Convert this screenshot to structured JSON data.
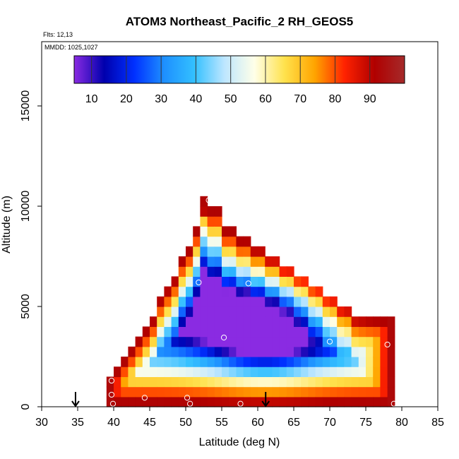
{
  "chart_data": {
    "type": "heatmap",
    "title": "ATOM3 Northeast_Pacific_2 RH_GEOS5",
    "flights_note": "Flts: 12,13",
    "dates_note": "MMDD: 1025,1027",
    "xlabel": "Latitude (deg N)",
    "ylabel": "Altitude (m)",
    "xlim": [
      30,
      85
    ],
    "ylim": [
      0,
      17500
    ],
    "x_ticks": [
      "30",
      "35",
      "40",
      "45",
      "50",
      "55",
      "60",
      "65",
      "70",
      "75",
      "80",
      "85"
    ],
    "y_ticks": [
      "0",
      "5000",
      "10000",
      "15000"
    ],
    "colorbar": {
      "range": [
        5,
        100
      ],
      "tick_values": [
        10,
        20,
        30,
        40,
        50,
        60,
        70,
        80,
        90
      ],
      "tick_labels": [
        "10",
        "20",
        "30",
        "40",
        "50",
        "60",
        "70",
        "80",
        "90"
      ],
      "colors": [
        "#8a2be2",
        "#0000ad",
        "#0030ff",
        "#1e90ff",
        "#33c0ff",
        "#bde6ff",
        "#ffffe8",
        "#ffe24d",
        "#ffa500",
        "#ff2200",
        "#b00000",
        "#a52a2a"
      ]
    },
    "grid": false,
    "bin_width_deg": 1,
    "bin_height_m": 500,
    "columns": [
      {
        "x": 39.5,
        "top": 1500
      },
      {
        "x": 40.5,
        "top": 2000
      },
      {
        "x": 41.5,
        "top": 2500
      },
      {
        "x": 42.5,
        "top": 3000
      },
      {
        "x": 43.5,
        "top": 3500
      },
      {
        "x": 44.5,
        "top": 4000
      },
      {
        "x": 45.5,
        "top": 4500
      },
      {
        "x": 46.5,
        "top": 5500
      },
      {
        "x": 47.5,
        "top": 6000
      },
      {
        "x": 48.5,
        "top": 6500
      },
      {
        "x": 49.5,
        "top": 7500
      },
      {
        "x": 50.5,
        "top": 8000
      },
      {
        "x": 51.5,
        "top": 9000
      },
      {
        "x": 52.5,
        "top": 10500
      },
      {
        "x": 53.5,
        "top": 10000
      },
      {
        "x": 54.5,
        "top": 10000
      },
      {
        "x": 55.5,
        "top": 9000
      },
      {
        "x": 56.5,
        "top": 9000
      },
      {
        "x": 57.5,
        "top": 8500
      },
      {
        "x": 58.5,
        "top": 8500
      },
      {
        "x": 59.5,
        "top": 8000
      },
      {
        "x": 60.5,
        "top": 8000
      },
      {
        "x": 61.5,
        "top": 7500
      },
      {
        "x": 62.5,
        "top": 7500
      },
      {
        "x": 63.5,
        "top": 7000
      },
      {
        "x": 64.5,
        "top": 7000
      },
      {
        "x": 65.5,
        "top": 6500
      },
      {
        "x": 66.5,
        "top": 6500
      },
      {
        "x": 67.5,
        "top": 6000
      },
      {
        "x": 68.5,
        "top": 6000
      },
      {
        "x": 69.5,
        "top": 5500
      },
      {
        "x": 70.5,
        "top": 5500
      },
      {
        "x": 71.5,
        "top": 5000
      },
      {
        "x": 72.5,
        "top": 5000
      },
      {
        "x": 73.5,
        "top": 4500
      },
      {
        "x": 74.5,
        "top": 4500
      },
      {
        "x": 75.5,
        "top": 4500
      },
      {
        "x": 76.5,
        "top": 4500
      },
      {
        "x": 77.5,
        "top": 4500
      },
      {
        "x": 78.5,
        "top": 4500
      }
    ],
    "profile_points": [
      {
        "x": 39.7,
        "y": 1300
      },
      {
        "x": 39.7,
        "y": 600
      },
      {
        "x": 39.9,
        "y": 150
      },
      {
        "x": 44.3,
        "y": 450
      },
      {
        "x": 50.2,
        "y": 450
      },
      {
        "x": 50.6,
        "y": 150
      },
      {
        "x": 51.8,
        "y": 6200
      },
      {
        "x": 53.2,
        "y": 10300
      },
      {
        "x": 55.3,
        "y": 3450
      },
      {
        "x": 57.6,
        "y": 150
      },
      {
        "x": 58.7,
        "y": 6150
      },
      {
        "x": 70.0,
        "y": 3250
      },
      {
        "x": 78.0,
        "y": 3100
      },
      {
        "x": 78.9,
        "y": 150
      },
      {
        "x": 79.7,
        "y": 4250
      }
    ],
    "arrows": [
      {
        "x": 34.7,
        "y": 0
      },
      {
        "x": 61.1,
        "y": 0
      }
    ]
  }
}
